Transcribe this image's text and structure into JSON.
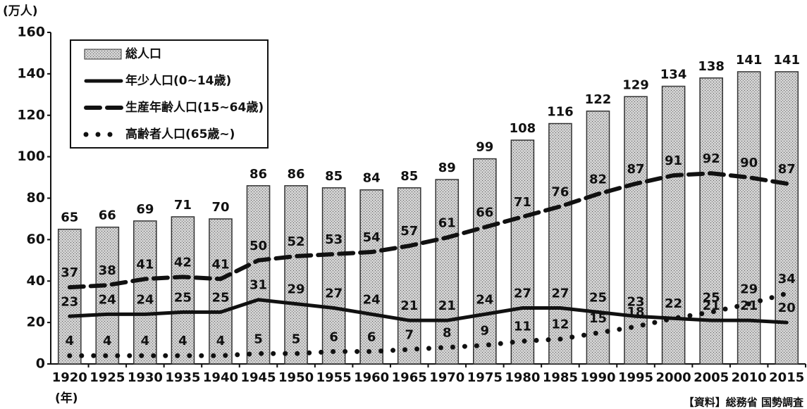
{
  "chart_data": {
    "type": "bar",
    "y_unit": "(万人)",
    "x_unit": "(年)",
    "source": "【資料】総務省 国勢調査",
    "categories": [
      "1920",
      "1925",
      "1930",
      "1935",
      "1940",
      "1945",
      "1950",
      "1955",
      "1960",
      "1965",
      "1970",
      "1975",
      "1980",
      "1985",
      "1990",
      "1995",
      "2000",
      "2005",
      "2010",
      "2015"
    ],
    "series": [
      {
        "name": "総人口",
        "type": "bar",
        "color": "#c4c4c4",
        "values": [
          65,
          66,
          69,
          71,
          70,
          86,
          86,
          85,
          84,
          85,
          89,
          99,
          108,
          116,
          122,
          129,
          134,
          138,
          141,
          141
        ]
      },
      {
        "name": "年少人口(0~14歳)",
        "type": "line",
        "dash": "solid",
        "color": "#111111",
        "values": [
          23,
          24,
          24,
          25,
          25,
          31,
          29,
          27,
          24,
          21,
          21,
          24,
          27,
          27,
          25,
          23,
          22,
          21,
          21,
          20
        ]
      },
      {
        "name": "生産年齢人口(15~64歳)",
        "type": "line",
        "dash": "dashed",
        "color": "#111111",
        "values": [
          37,
          38,
          41,
          42,
          41,
          50,
          52,
          53,
          54,
          57,
          61,
          66,
          71,
          76,
          82,
          87,
          91,
          92,
          90,
          87
        ]
      },
      {
        "name": "高齢者人口(65歳~)",
        "type": "line",
        "dash": "dotted",
        "color": "#111111",
        "values": [
          4,
          4,
          4,
          4,
          4,
          5,
          5,
          6,
          6,
          7,
          8,
          9,
          11,
          12,
          15,
          18,
          22,
          25,
          29,
          34
        ]
      }
    ],
    "ylim": [
      0,
      160
    ],
    "yticks": [
      0,
      20,
      40,
      60,
      80,
      100,
      120,
      140,
      160
    ],
    "grid": false
  }
}
